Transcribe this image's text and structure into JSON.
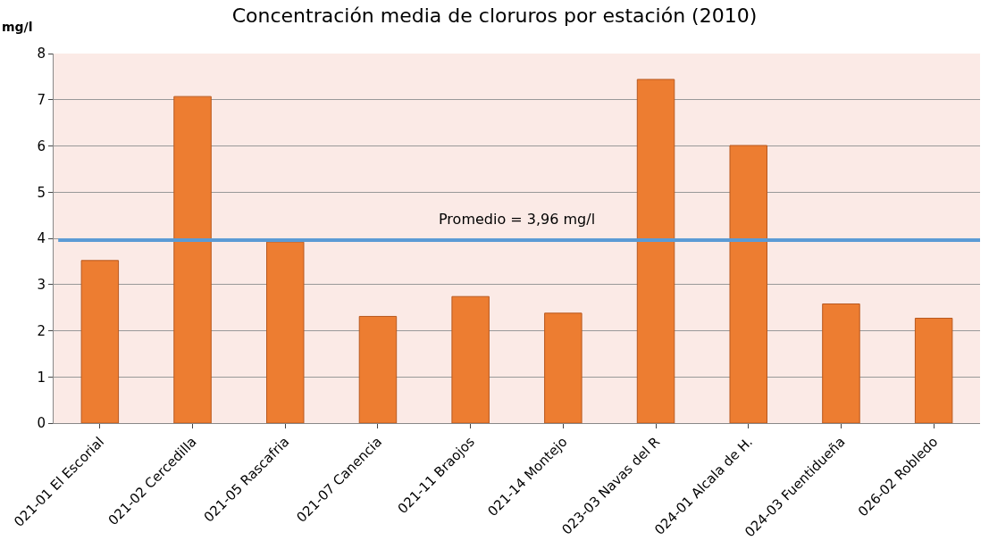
{
  "chart_data": {
    "type": "bar",
    "title": "Concentración media de cloruros por estación (2010)",
    "ylabel": "mg/l",
    "categories": [
      "021-01 El Escorial",
      "021-02 Cercedilla",
      "021-05 Rascafria",
      "021-07 Canencia",
      "021-11 Braojos",
      "021-14 Montejo",
      "023-03 Navas del R",
      "024-01 Alcala de H.",
      "024-03 Fuentidueña",
      "026-02 Robledo"
    ],
    "values": [
      3.52,
      7.07,
      3.92,
      2.31,
      2.74,
      2.38,
      7.44,
      6.01,
      2.58,
      2.27
    ],
    "color": "#ed7d31",
    "ylim": [
      0,
      8
    ],
    "yticks": [
      0,
      1,
      2,
      3,
      4,
      5,
      6,
      7,
      8
    ],
    "grid": "y",
    "ref_lines": [
      {
        "axis": "y",
        "value": 3.96,
        "label": "Promedio = 3,96 mg/l",
        "color": "#5b9bd5",
        "line_style": "solid"
      }
    ]
  }
}
